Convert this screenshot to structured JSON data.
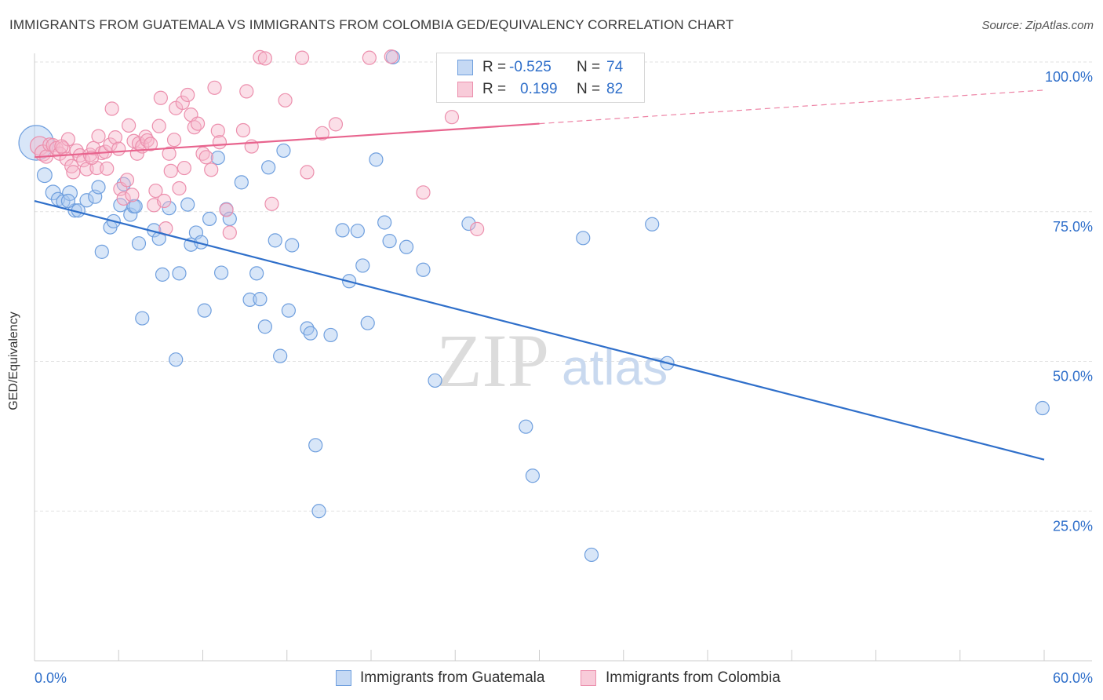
{
  "title": "IMMIGRANTS FROM GUATEMALA VS IMMIGRANTS FROM COLOMBIA GED/EQUIVALENCY CORRELATION CHART",
  "source": "Source: ZipAtlas.com",
  "watermark": {
    "zip": "ZIP",
    "atlas": "atlas"
  },
  "legend": {
    "r_label": "R =",
    "n_label": "N =",
    "series": [
      {
        "r": "-0.525",
        "n": "74"
      },
      {
        "r": "0.199",
        "n": "82"
      }
    ]
  },
  "bottom_legend": [
    "Immigrants from Guatemala",
    "Immigrants from Colombia"
  ],
  "colors": {
    "blue": "#2f6fca",
    "blue_fill": "#a9c8f0",
    "pink": "#e8648e",
    "pink_fill": "#f6b8cb",
    "grid": "#e2e2e2",
    "axis_text": "#2f6fca"
  },
  "chart_data": {
    "type": "scatter",
    "xlabel": "",
    "ylabel": "GED/Equivalency",
    "xlim": [
      0,
      60
    ],
    "ylim": [
      0,
      105
    ],
    "x_tick_labels": [
      "0.0%",
      "60.0%"
    ],
    "y_ticks": [
      25,
      50,
      75,
      100
    ],
    "y_tick_labels": [
      "25.0%",
      "50.0%",
      "75.0%",
      "100.0%"
    ],
    "grid": true,
    "legend_position": "top-center",
    "series": [
      {
        "name": "Immigrants from Guatemala",
        "color": "blue",
        "r": -0.525,
        "n": 74,
        "trend": {
          "x0": 0,
          "y0": 76.8,
          "x1": 60,
          "y1": 33.6
        },
        "points": [
          [
            0.1,
            86.5,
            26
          ],
          [
            0.6,
            81.1,
            11
          ],
          [
            1.1,
            78.2,
            11
          ],
          [
            1.4,
            77.1,
            10
          ],
          [
            1.7,
            76.7,
            10
          ],
          [
            2.1,
            78.1,
            11
          ],
          [
            2.4,
            75.2,
            10
          ],
          [
            2.6,
            75.2,
            10
          ],
          [
            3.1,
            76.9,
            10
          ],
          [
            3.6,
            77.5,
            10
          ],
          [
            3.8,
            79.1,
            10
          ],
          [
            4.0,
            68.3,
            10
          ],
          [
            4.5,
            72.4,
            10
          ],
          [
            4.7,
            73.4,
            10
          ],
          [
            5.1,
            76.1,
            10
          ],
          [
            5.3,
            79.6,
            10
          ],
          [
            5.7,
            74.5,
            10
          ],
          [
            5.9,
            75.9,
            10
          ],
          [
            6.2,
            69.7,
            10
          ],
          [
            6.4,
            57.2,
            10
          ],
          [
            7.1,
            71.9,
            10
          ],
          [
            7.4,
            70.5,
            10
          ],
          [
            7.6,
            64.5,
            10
          ],
          [
            8.0,
            75.6,
            10
          ],
          [
            8.4,
            50.3,
            10
          ],
          [
            8.6,
            64.7,
            10
          ],
          [
            9.1,
            76.2,
            10
          ],
          [
            9.3,
            69.5,
            10
          ],
          [
            9.6,
            71.5,
            10
          ],
          [
            9.9,
            69.9,
            10
          ],
          [
            10.1,
            58.5,
            10
          ],
          [
            10.4,
            73.8,
            10
          ],
          [
            10.9,
            84.0,
            10
          ],
          [
            11.1,
            64.8,
            10
          ],
          [
            11.4,
            75.4,
            10
          ],
          [
            11.6,
            73.8,
            10
          ],
          [
            12.3,
            79.9,
            10
          ],
          [
            12.8,
            60.3,
            10
          ],
          [
            13.2,
            64.7,
            10
          ],
          [
            13.4,
            60.4,
            10
          ],
          [
            13.7,
            55.8,
            10
          ],
          [
            13.9,
            82.4,
            10
          ],
          [
            14.3,
            70.2,
            10
          ],
          [
            14.6,
            50.9,
            10
          ],
          [
            14.8,
            85.2,
            10
          ],
          [
            15.1,
            58.5,
            10
          ],
          [
            15.3,
            69.4,
            10
          ],
          [
            16.2,
            55.5,
            10
          ],
          [
            16.4,
            54.7,
            10
          ],
          [
            16.7,
            36.0,
            10
          ],
          [
            16.9,
            25.0,
            10
          ],
          [
            17.6,
            54.4,
            10
          ],
          [
            18.7,
            63.4,
            10
          ],
          [
            19.2,
            71.8,
            10
          ],
          [
            19.5,
            66.0,
            10
          ],
          [
            19.8,
            56.4,
            10
          ],
          [
            20.3,
            83.7,
            10
          ],
          [
            20.8,
            73.2,
            10
          ],
          [
            21.1,
            70.1,
            10
          ],
          [
            21.3,
            100.8,
            10
          ],
          [
            22.1,
            69.1,
            10
          ],
          [
            23.1,
            65.3,
            10
          ],
          [
            23.8,
            46.8,
            10
          ],
          [
            25.8,
            73.0,
            10
          ],
          [
            29.2,
            39.1,
            10
          ],
          [
            29.6,
            30.9,
            10
          ],
          [
            32.6,
            70.6,
            10
          ],
          [
            33.1,
            17.7,
            10
          ],
          [
            36.7,
            72.9,
            10
          ],
          [
            37.6,
            49.7,
            10
          ],
          [
            59.9,
            42.2,
            10
          ],
          [
            2.0,
            76.8,
            10
          ],
          [
            6.0,
            75.9,
            10
          ],
          [
            18.3,
            71.9,
            10
          ]
        ]
      },
      {
        "name": "Immigrants from Colombia",
        "color": "pink",
        "r": 0.199,
        "n": 82,
        "trend": {
          "x0": 0,
          "y0": 84.1,
          "x1": 30,
          "y1": 89.7,
          "dashed_to_x": 60,
          "dashed_to_y": 95.3
        },
        "points": [
          [
            0.3,
            86.0,
            14
          ],
          [
            0.5,
            84.8,
            12
          ],
          [
            0.7,
            84.2,
            10
          ],
          [
            0.9,
            86.2,
            10
          ],
          [
            1.1,
            86.1,
            10
          ],
          [
            1.3,
            85.6,
            10
          ],
          [
            1.5,
            84.7,
            10
          ],
          [
            1.7,
            85.6,
            10
          ],
          [
            1.9,
            83.8,
            10
          ],
          [
            2.0,
            87.1,
            10
          ],
          [
            2.2,
            82.6,
            10
          ],
          [
            2.3,
            81.6,
            10
          ],
          [
            2.5,
            85.2,
            10
          ],
          [
            2.7,
            84.4,
            10
          ],
          [
            2.9,
            83.6,
            10
          ],
          [
            3.1,
            82.1,
            10
          ],
          [
            3.3,
            84.5,
            10
          ],
          [
            3.5,
            85.6,
            10
          ],
          [
            3.7,
            82.3,
            10
          ],
          [
            3.8,
            87.6,
            10
          ],
          [
            4.0,
            84.8,
            10
          ],
          [
            4.2,
            85.0,
            10
          ],
          [
            4.3,
            82.2,
            10
          ],
          [
            4.5,
            86.2,
            10
          ],
          [
            4.6,
            92.2,
            10
          ],
          [
            4.8,
            87.4,
            10
          ],
          [
            5.0,
            85.5,
            10
          ],
          [
            5.1,
            78.8,
            10
          ],
          [
            5.3,
            77.2,
            10
          ],
          [
            5.5,
            80.3,
            10
          ],
          [
            5.6,
            89.4,
            10
          ],
          [
            5.8,
            77.8,
            10
          ],
          [
            5.9,
            86.8,
            10
          ],
          [
            6.1,
            84.7,
            10
          ],
          [
            6.2,
            86.4,
            10
          ],
          [
            6.4,
            85.9,
            10
          ],
          [
            6.6,
            87.5,
            10
          ],
          [
            6.7,
            86.9,
            10
          ],
          [
            6.9,
            86.3,
            10
          ],
          [
            7.1,
            76.1,
            10
          ],
          [
            7.2,
            78.5,
            10
          ],
          [
            7.4,
            89.3,
            10
          ],
          [
            7.5,
            94.0,
            10
          ],
          [
            7.7,
            76.8,
            10
          ],
          [
            7.8,
            72.2,
            10
          ],
          [
            8.0,
            84.7,
            10
          ],
          [
            8.1,
            81.8,
            10
          ],
          [
            8.3,
            87.0,
            10
          ],
          [
            8.4,
            92.3,
            10
          ],
          [
            8.6,
            78.9,
            10
          ],
          [
            8.8,
            93.2,
            10
          ],
          [
            8.9,
            82.3,
            10
          ],
          [
            9.1,
            94.5,
            10
          ],
          [
            9.3,
            91.2,
            10
          ],
          [
            9.5,
            89.1,
            10
          ],
          [
            9.7,
            89.7,
            10
          ],
          [
            10.0,
            84.7,
            10
          ],
          [
            10.2,
            84.1,
            10
          ],
          [
            10.5,
            82.0,
            10
          ],
          [
            10.7,
            95.7,
            10
          ],
          [
            10.9,
            88.5,
            10
          ],
          [
            11.0,
            86.6,
            10
          ],
          [
            11.4,
            75.3,
            10
          ],
          [
            11.6,
            71.5,
            10
          ],
          [
            12.4,
            88.6,
            10
          ],
          [
            12.6,
            95.1,
            10
          ],
          [
            12.9,
            85.9,
            10
          ],
          [
            13.4,
            100.8,
            10
          ],
          [
            13.7,
            100.6,
            10
          ],
          [
            14.1,
            76.3,
            10
          ],
          [
            14.9,
            93.6,
            10
          ],
          [
            15.9,
            100.7,
            10
          ],
          [
            16.2,
            81.6,
            10
          ],
          [
            17.1,
            88.1,
            10
          ],
          [
            17.9,
            89.6,
            10
          ],
          [
            19.9,
            100.7,
            10
          ],
          [
            21.2,
            100.9,
            10
          ],
          [
            23.1,
            78.2,
            10
          ],
          [
            24.8,
            90.8,
            10
          ],
          [
            26.3,
            72.1,
            10
          ],
          [
            1.6,
            85.9,
            10
          ],
          [
            3.4,
            84.0,
            10
          ]
        ]
      }
    ]
  }
}
